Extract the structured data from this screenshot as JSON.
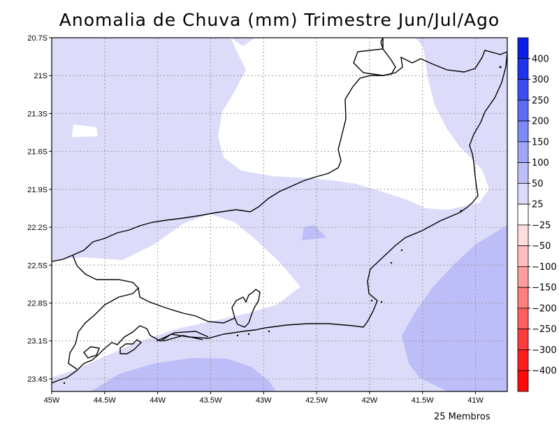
{
  "map": {
    "title": "Anomalia de Chuva (mm) Trimestre Jun/Jul/Ago",
    "footer": "25 Membros",
    "latitude_labels": [
      "20.7S",
      "21S",
      "21.3S",
      "21.6S",
      "21.9S",
      "22.2S",
      "22.5S",
      "22.8S",
      "23.1S",
      "23.4S"
    ],
    "longitude_labels": [
      "45W",
      "44.5W",
      "44W",
      "43.5W",
      "43W",
      "42.5W",
      "42W",
      "41.5W",
      "41W"
    ],
    "extent": {
      "lon_min": -45,
      "lon_max": -40.7,
      "lat_min": -23.5,
      "lat_max": -20.7
    },
    "fill_colors": {
      "0_25": "#ffffff",
      "25_50": "#dcdcfa",
      "50_100": "#bdbdf7"
    }
  },
  "colorbar": {
    "labels": [
      "400",
      "300",
      "250",
      "200",
      "150",
      "100",
      "50",
      "25",
      "-25",
      "-50",
      "-100",
      "-150",
      "-200",
      "-250",
      "-300",
      "-400"
    ],
    "colors": [
      "#0a1fe6",
      "#1e32ee",
      "#3c4ef2",
      "#5e6df4",
      "#7e8af6",
      "#9ea6f8",
      "#bdbdf7",
      "#dcdcfa",
      "#ffffff",
      "#ffdede",
      "#ffbfbf",
      "#ff9e9e",
      "#ff7e7e",
      "#ff5e5e",
      "#ff3c3c",
      "#ff1e1e",
      "#ff0a0a"
    ]
  }
}
